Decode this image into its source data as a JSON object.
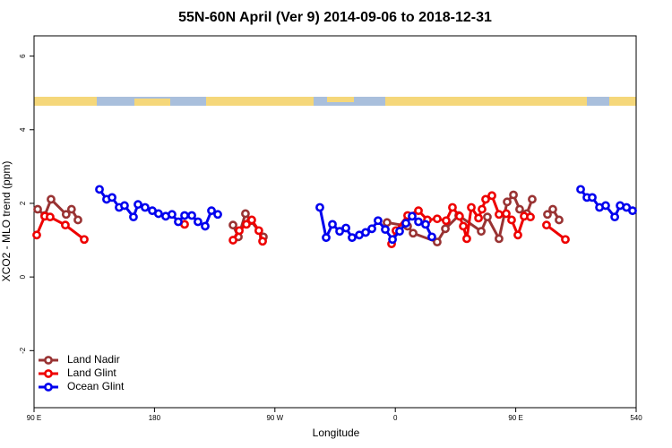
{
  "chart_data": {
    "type": "line",
    "title": "55N-60N April (Ver 9)   2014-09-06 to 2018-12-31",
    "xlabel": "Longitude",
    "ylabel": "XCO2 - MLO trend (ppm)",
    "xlim": [
      90,
      540
    ],
    "ylim": [
      -3.55,
      6.55
    ],
    "xticks": [
      {
        "value": 90,
        "label": "90 E"
      },
      180,
      {
        "value": 270,
        "label": "90 W"
      },
      {
        "value": 360,
        "label": "0"
      },
      {
        "value": 450,
        "label": "90 E"
      },
      540
    ],
    "yticks": [
      -2,
      0,
      2,
      4,
      6
    ],
    "legend": "lower left",
    "series": [
      {
        "name": "Land Nadir",
        "color": "#993333",
        "x": [
          92.7,
          98,
          102.7,
          114,
          118,
          122.8,
          null,
          238.7,
          242.7,
          248,
          252,
          261.4,
          null,
          353.8,
          369.2,
          373.3,
          391.3,
          397.4,
          407.4,
          424.2,
          428.8,
          437.5,
          443.6,
          448.3,
          452.9,
          458.3,
          462.3,
          null,
          473.7,
          477.7,
          482.4
        ],
        "values": [
          1.84,
          1.67,
          2.11,
          1.7,
          1.84,
          1.55,
          null,
          1.41,
          1.09,
          1.72,
          1.53,
          1.09,
          null,
          1.48,
          1.38,
          1.19,
          0.95,
          1.31,
          1.67,
          1.24,
          1.63,
          1.04,
          2.04,
          2.23,
          1.84,
          1.72,
          2.11,
          null,
          1.7,
          1.84,
          1.55
        ]
      },
      {
        "name": "Land Glint",
        "color": "#ee0000",
        "x": [
          92,
          98,
          102,
          113.4,
          127.5,
          null,
          202.5,
          null,
          238.7,
          243.4,
          248.7,
          252.7,
          258,
          260.8,
          null,
          357.2,
          360.5,
          369.2,
          377.3,
          384,
          391.3,
          398,
          402.7,
          408,
          410.8,
          413.4,
          416.8,
          422.2,
          424.8,
          427.5,
          432.2,
          437.5,
          442.9,
          446.9,
          451.6,
          456.3,
          461,
          null,
          473,
          487.1
        ],
        "values": [
          1.14,
          1.65,
          1.63,
          1.41,
          1.02,
          null,
          1.43,
          null,
          1.0,
          1.26,
          1.43,
          1.55,
          1.26,
          0.97,
          null,
          0.9,
          1.26,
          1.67,
          1.8,
          1.55,
          1.58,
          1.53,
          1.89,
          1.65,
          1.38,
          1.04,
          1.89,
          1.6,
          1.84,
          2.11,
          2.21,
          1.7,
          1.72,
          1.55,
          1.14,
          1.65,
          1.63,
          null,
          1.41,
          1.02
        ]
      },
      {
        "name": "Ocean Glint",
        "color": "#0000ee",
        "x": [
          138.9,
          144.2,
          148.3,
          153.6,
          157.6,
          164.3,
          167.7,
          173,
          178.4,
          183,
          188.4,
          193.1,
          197.8,
          202.5,
          207.9,
          212.5,
          217.9,
          222.6,
          227.3,
          null,
          303.6,
          308.3,
          313,
          318.4,
          323.1,
          327.7,
          333.1,
          337.8,
          342.5,
          347.1,
          352.5,
          357.9,
          363.2,
          367.9,
          372.6,
          377.3,
          382.6,
          387.3,
          null,
          498.5,
          503.2,
          507.2,
          512.6,
          517.2,
          524,
          528,
          532.8,
          537.3
        ],
        "values": [
          2.38,
          2.11,
          2.16,
          1.89,
          1.94,
          1.63,
          1.97,
          1.89,
          1.8,
          1.72,
          1.65,
          1.7,
          1.5,
          1.67,
          1.67,
          1.5,
          1.38,
          1.8,
          1.7,
          null,
          1.89,
          1.07,
          1.43,
          1.24,
          1.33,
          1.07,
          1.14,
          1.21,
          1.31,
          1.53,
          1.29,
          1.02,
          1.24,
          1.46,
          1.65,
          1.5,
          1.43,
          1.09,
          null,
          2.38,
          2.16,
          2.16,
          1.89,
          1.94,
          1.63,
          1.94,
          1.89,
          1.8
        ]
      }
    ]
  }
}
